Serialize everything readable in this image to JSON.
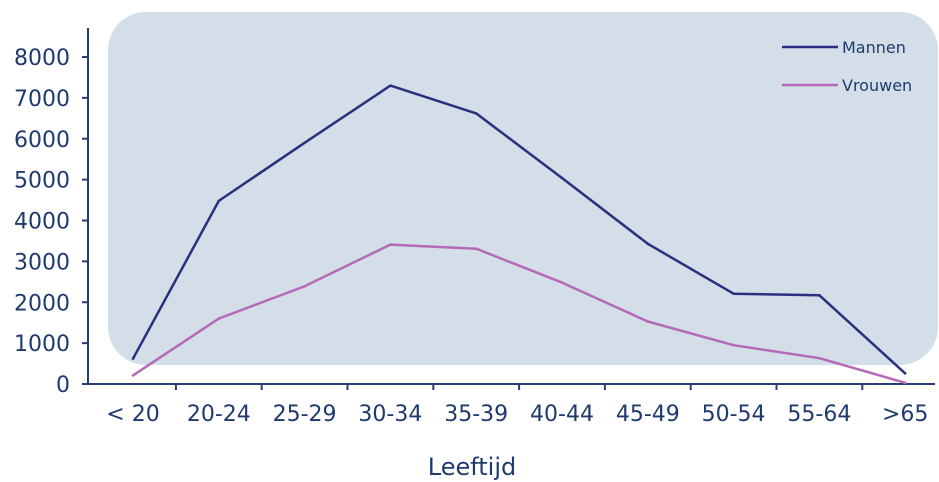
{
  "chart_data": {
    "type": "line",
    "categories": [
      "< 20",
      "20-24",
      "25-29",
      "30-34",
      "35-39",
      "40-44",
      "45-49",
      "50-54",
      "55-64",
      ">65"
    ],
    "series": [
      {
        "name": "Mannen",
        "values": [
          620,
          4480,
          5900,
          7300,
          6620,
          5040,
          3430,
          2210,
          2170,
          260
        ],
        "color": "#2b2f80"
      },
      {
        "name": "Vrouwen",
        "values": [
          210,
          1600,
          2390,
          3410,
          3310,
          2480,
          1530,
          950,
          630,
          30
        ],
        "color": "#b569b7"
      }
    ],
    "yticks": [
      0,
      1000,
      2000,
      3000,
      4000,
      5000,
      6000,
      7000,
      8000
    ],
    "ylim": [
      0,
      8000
    ],
    "xlabel": "Leeftijd",
    "ylabel": "",
    "legend": "top-right",
    "background_panel_color": "#d3dee9",
    "axis_color": "#2b3b75"
  }
}
